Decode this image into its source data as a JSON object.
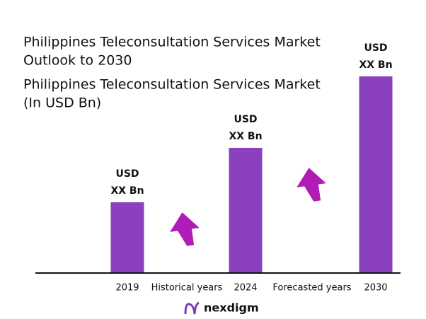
{
  "chart_data": {
    "type": "bar",
    "title": [
      "Philippines Teleconsultation Services Market",
      "Outlook to 2030"
    ],
    "subtitle": [
      "Philippines Teleconsultation Services Market",
      "(In USD Bn)"
    ],
    "categories": [
      "2019",
      "2024",
      "2030"
    ],
    "values": [
      99,
      176,
      277
    ],
    "bar_labels": [
      [
        "USD",
        "XX Bn"
      ],
      [
        "USD",
        "XX Bn"
      ],
      [
        "USD",
        "XX Bn"
      ]
    ],
    "color": "#8b41be",
    "ylim": [
      0,
      300
    ],
    "annotations": [
      "Historical years",
      "Forecasted years"
    ],
    "logo": "nexdigm"
  }
}
